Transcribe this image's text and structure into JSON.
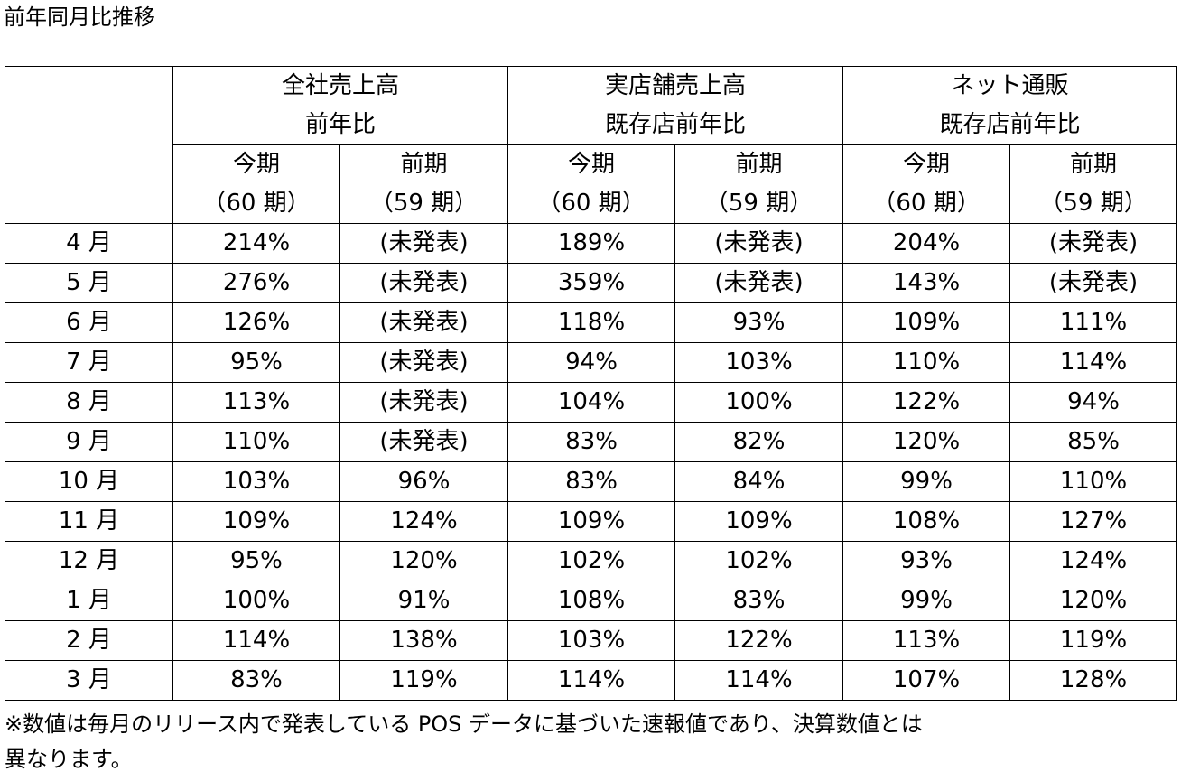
{
  "title": "前年同月比推移",
  "groups": [
    {
      "line1": "全社売上高",
      "line2": "前年比"
    },
    {
      "line1": "実店舗売上高",
      "line2": "既存店前年比"
    },
    {
      "line1": "ネット通販",
      "line2": "既存店前年比"
    }
  ],
  "periods": {
    "current": {
      "line1": "今期",
      "line2": "（60 期）"
    },
    "previous": {
      "line1": "前期",
      "line2": "（59 期）"
    }
  },
  "rows": [
    {
      "month": "4 月",
      "v": [
        "214%",
        "(未発表)",
        "189%",
        "(未発表)",
        "204%",
        "(未発表)"
      ]
    },
    {
      "month": "5 月",
      "v": [
        "276%",
        "(未発表)",
        "359%",
        "(未発表)",
        "143%",
        "(未発表)"
      ]
    },
    {
      "month": "6 月",
      "v": [
        "126%",
        "(未発表)",
        "118%",
        "93%",
        "109%",
        "111%"
      ]
    },
    {
      "month": "7 月",
      "v": [
        "95%",
        "(未発表)",
        "94%",
        "103%",
        "110%",
        "114%"
      ]
    },
    {
      "month": "8 月",
      "v": [
        "113%",
        "(未発表)",
        "104%",
        "100%",
        "122%",
        "94%"
      ]
    },
    {
      "month": "9 月",
      "v": [
        "110%",
        "(未発表)",
        "83%",
        "82%",
        "120%",
        "85%"
      ]
    },
    {
      "month": "10 月",
      "v": [
        "103%",
        "96%",
        "83%",
        "84%",
        "99%",
        "110%"
      ]
    },
    {
      "month": "11 月",
      "v": [
        "109%",
        "124%",
        "109%",
        "109%",
        "108%",
        "127%"
      ]
    },
    {
      "month": "12 月",
      "v": [
        "95%",
        "120%",
        "102%",
        "102%",
        "93%",
        "124%"
      ]
    },
    {
      "month": "1 月",
      "v": [
        "100%",
        "91%",
        "108%",
        "83%",
        "99%",
        "120%"
      ]
    },
    {
      "month": "2 月",
      "v": [
        "114%",
        "138%",
        "103%",
        "122%",
        "113%",
        "119%"
      ]
    },
    {
      "month": "3 月",
      "v": [
        "83%",
        "119%",
        "114%",
        "114%",
        "107%",
        "128%"
      ]
    }
  ],
  "note": {
    "line1": "※数値は毎月のリリース内で発表している POS データに基づいた速報値であり、決算数値とは",
    "line2": "異なります。"
  }
}
